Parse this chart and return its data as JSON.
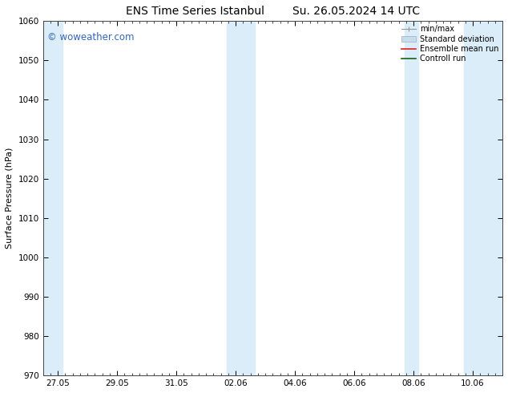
{
  "title_left": "ENS Time Series Istanbul",
  "title_right": "Su. 26.05.2024 14 UTC",
  "ylabel": "Surface Pressure (hPa)",
  "ylim": [
    970,
    1060
  ],
  "yticks": [
    970,
    980,
    990,
    1000,
    1010,
    1020,
    1030,
    1040,
    1050,
    1060
  ],
  "xtick_labels": [
    "27.05",
    "29.05",
    "31.05",
    "02.06",
    "04.06",
    "06.06",
    "08.06",
    "10.06"
  ],
  "xtick_positions": [
    0,
    2,
    4,
    6,
    8,
    10,
    12,
    14
  ],
  "xlim": [
    -0.5,
    15.0
  ],
  "shaded_bands": [
    {
      "x_start": -0.5,
      "x_end": 0.15,
      "color": "#daedf8"
    },
    {
      "x_start": 5.7,
      "x_end": 6.65,
      "color": "#daedf8"
    },
    {
      "x_start": 11.7,
      "x_end": 12.15,
      "color": "#daedf8"
    },
    {
      "x_start": 13.7,
      "x_end": 15.0,
      "color": "#daedf8"
    }
  ],
  "watermark": "© woweather.com",
  "watermark_color": "#3366bb",
  "background_color": "#ffffff",
  "plot_bg_color": "#ffffff",
  "title_fontsize": 10,
  "label_fontsize": 8,
  "tick_fontsize": 7.5,
  "minor_tick_interval": 0.25,
  "grid_color": "#cccccc",
  "spine_color": "#444444"
}
